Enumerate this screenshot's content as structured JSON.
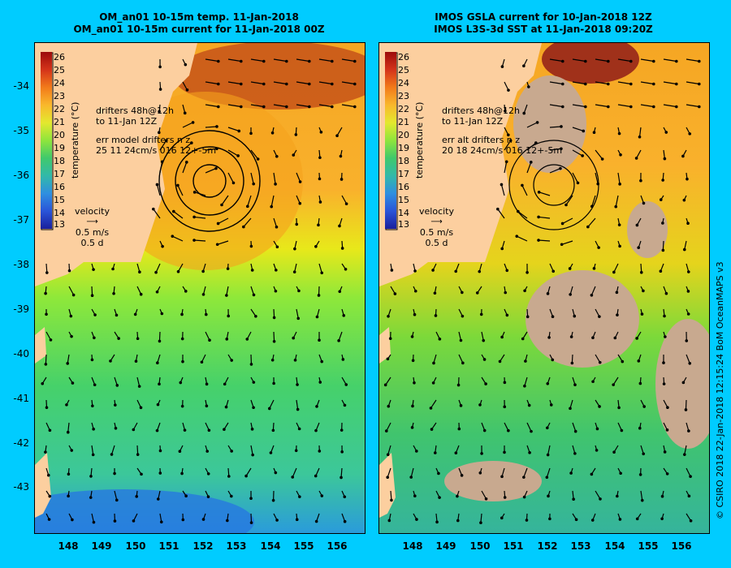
{
  "left_title": {
    "line1": "OM_an01 10-15m temp. 11-Jan-2018",
    "line2": "OM_an01 10-15m current for 11-Jan-2018 00Z"
  },
  "right_title": {
    "line1": "IMOS GSLA current for 10-Jan-2018 12Z",
    "line2": "IMOS L3S-3d SST at 11-Jan-2018 09:20Z"
  },
  "y_labels": [
    "-34",
    "-35",
    "-36",
    "-37",
    "-38",
    "-39",
    "-40",
    "-41",
    "-42",
    "-43"
  ],
  "x_labels": [
    "148",
    "149",
    "150",
    "151",
    "152",
    "153",
    "154",
    "155",
    "156"
  ],
  "colorbar": {
    "title": "temperature (°C)",
    "ticks": [
      "26",
      "25",
      "24",
      "23",
      "22",
      "21",
      "20",
      "19",
      "18",
      "17",
      "16",
      "15",
      "14",
      "13"
    ]
  },
  "left_annot": {
    "drifters1": "drifters 48h@12h",
    "drifters2": "to 11-Jan 12Z",
    "err1": "err model drifters n  z",
    "err2": "25 11 24cm/s 016 12+-5m",
    "vel": "velocity",
    "vel_speed": "0.5 m/s",
    "vel_time": "0.5 d"
  },
  "right_annot": {
    "drifters1": "drifters 48h@12h",
    "drifters2": "to 11-Jan 12Z",
    "err1": "err alt drifters n  z",
    "err2": "20 18 24cm/s 016 12+-5m",
    "vel": "velocity",
    "vel_speed": "0.5 m/s",
    "vel_time": "0.5 d"
  },
  "credit": "© CSIRO 2018   22-Jan-2018 12:15:24 BoM OceanMAPS v3",
  "colors": {
    "background": "#00ccff",
    "land": "#fccf9f",
    "cloud": "#c8a98f"
  }
}
